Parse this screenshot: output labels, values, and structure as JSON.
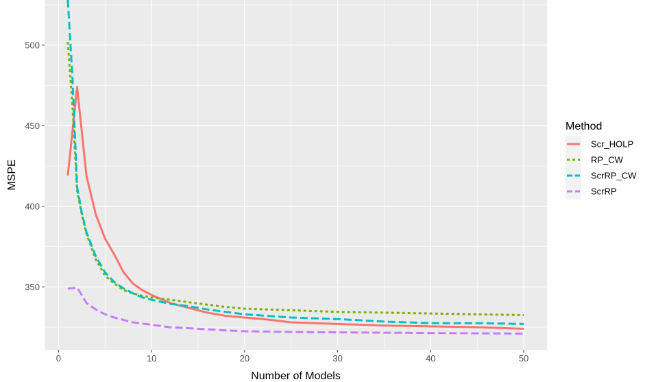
{
  "chart_data": {
    "type": "line",
    "title": "",
    "xlabel": "Number of Models",
    "ylabel": "MSPE",
    "xlim": [
      -1.5,
      52.5
    ],
    "ylim": [
      311,
      528
    ],
    "x_ticks": [
      0,
      10,
      20,
      30,
      40,
      50
    ],
    "y_ticks": [
      350,
      400,
      450,
      500
    ],
    "x_tick_labels": [
      "0",
      "10",
      "20",
      "30",
      "40",
      "50"
    ],
    "y_tick_labels": [
      "350",
      "400",
      "450",
      "500"
    ],
    "grid": true,
    "legend_title": "Method",
    "legend_position": "right",
    "series": [
      {
        "name": "Scr_HOLP",
        "color": "#F8766D",
        "dash": "solid",
        "x": [
          1,
          2,
          3,
          4,
          5,
          6,
          7,
          8,
          9,
          10,
          12,
          14,
          16,
          18,
          20,
          22,
          25,
          30,
          35,
          40,
          45,
          50
        ],
        "y": [
          419,
          474,
          419,
          395,
          380,
          370,
          359,
          352,
          348,
          345,
          340,
          337,
          334,
          332,
          331,
          330,
          328,
          327,
          326,
          325.5,
          325,
          324
        ]
      },
      {
        "name": "RP_CW",
        "color": "#7CAE00",
        "dash": "dotted",
        "x": [
          1,
          1.5,
          2,
          2.5,
          3,
          4,
          5,
          6,
          7,
          8,
          9,
          10,
          12,
          14,
          16,
          18,
          20,
          25,
          30,
          35,
          40,
          45,
          50
        ],
        "y": [
          502,
          462,
          410,
          395,
          383,
          367,
          357,
          352,
          348,
          346,
          344.5,
          343.5,
          342,
          340.5,
          339,
          337.5,
          336.5,
          335.5,
          334.5,
          334,
          333.5,
          333,
          332.5
        ]
      },
      {
        "name": "ScrRP_CW",
        "color": "#00BFC4",
        "dash": "dashed",
        "x": [
          1,
          1.5,
          2,
          2.5,
          3,
          4,
          5,
          6,
          7,
          8,
          9,
          10,
          12,
          14,
          16,
          18,
          20,
          25,
          30,
          35,
          40,
          45,
          50
        ],
        "y": [
          528,
          480,
          412,
          396,
          384,
          369,
          359,
          353,
          349,
          346,
          343.5,
          342,
          339.5,
          338,
          336,
          334.5,
          333,
          331,
          330,
          328.5,
          327.5,
          327.5,
          327
        ]
      },
      {
        "name": "ScrRP",
        "color": "#C77CFF",
        "dash": "dashed",
        "x": [
          1,
          2,
          2.5,
          3,
          4,
          5,
          6,
          8,
          10,
          12,
          15,
          18,
          20,
          25,
          30,
          35,
          40,
          45,
          50
        ],
        "y": [
          349,
          349.5,
          345,
          340,
          336,
          333,
          331,
          328,
          326.5,
          325,
          324,
          323,
          322.5,
          322,
          321.8,
          321.6,
          321.4,
          321.2,
          321
        ]
      }
    ]
  }
}
